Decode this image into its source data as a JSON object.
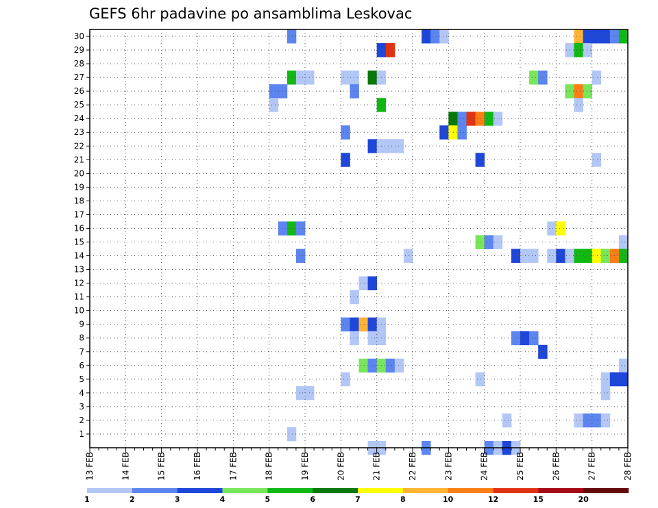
{
  "chart_data": {
    "type": "heatmap",
    "title": "GEFS 6hr padavine po ansamblima Leskovac",
    "xlabel": "",
    "ylabel": "",
    "x_ticks": [
      "13 FEB",
      "14 FEB",
      "15 FEB",
      "16 FEB",
      "17 FEB",
      "18 FEB",
      "19 FEB",
      "20 FEB",
      "21 FEB",
      "22 FEB",
      "23 FEB",
      "24 FEB",
      "25 FEB",
      "26 FEB",
      "27 FEB",
      "28 FEB"
    ],
    "y_ticks": [
      "1",
      "2",
      "3",
      "4",
      "5",
      "6",
      "7",
      "8",
      "9",
      "10",
      "11",
      "12",
      "13",
      "14",
      "15",
      "16",
      "17",
      "18",
      "19",
      "20",
      "21",
      "22",
      "23",
      "24",
      "25",
      "26",
      "27",
      "28",
      "29",
      "30"
    ],
    "steps_per_day": 4,
    "grid": true,
    "legend_position": "bottom",
    "legend": {
      "colors": [
        "#b3c7f7",
        "#5c85f0",
        "#1e46d8",
        "#78e65a",
        "#10b814",
        "#087808",
        "#ffff00",
        "#ffb432",
        "#ff7d14",
        "#e13214",
        "#a50a14",
        "#640a0a"
      ],
      "labels": [
        "1",
        "2",
        "3",
        "4",
        "5",
        "6",
        "7",
        "8",
        "10",
        "12",
        "15",
        "20"
      ]
    },
    "cells": [
      {
        "m": 30,
        "t": 22,
        "c": 2
      },
      {
        "m": 30,
        "t": 37,
        "c": 3
      },
      {
        "m": 30,
        "t": 38,
        "c": 2
      },
      {
        "m": 30,
        "t": 39,
        "c": 1
      },
      {
        "m": 30,
        "t": 54,
        "c": 8
      },
      {
        "m": 30,
        "t": 55,
        "c": 3
      },
      {
        "m": 30,
        "t": 56,
        "c": 3
      },
      {
        "m": 30,
        "t": 57,
        "c": 3
      },
      {
        "m": 30,
        "t": 58,
        "c": 2
      },
      {
        "m": 30,
        "t": 59,
        "c": 5
      },
      {
        "m": 29,
        "t": 32,
        "c": 3
      },
      {
        "m": 29,
        "t": 33,
        "c": 10
      },
      {
        "m": 29,
        "t": 53,
        "c": 1
      },
      {
        "m": 29,
        "t": 54,
        "c": 5
      },
      {
        "m": 29,
        "t": 55,
        "c": 1
      },
      {
        "m": 27,
        "t": 22,
        "c": 5
      },
      {
        "m": 27,
        "t": 23,
        "c": 1
      },
      {
        "m": 27,
        "t": 24,
        "c": 1
      },
      {
        "m": 27,
        "t": 28,
        "c": 1
      },
      {
        "m": 27,
        "t": 29,
        "c": 1
      },
      {
        "m": 27,
        "t": 31,
        "c": 6
      },
      {
        "m": 27,
        "t": 32,
        "c": 1
      },
      {
        "m": 27,
        "t": 49,
        "c": 4
      },
      {
        "m": 27,
        "t": 50,
        "c": 2
      },
      {
        "m": 27,
        "t": 56,
        "c": 1
      },
      {
        "m": 26,
        "t": 20,
        "c": 2
      },
      {
        "m": 26,
        "t": 21,
        "c": 2
      },
      {
        "m": 26,
        "t": 29,
        "c": 2
      },
      {
        "m": 26,
        "t": 53,
        "c": 4
      },
      {
        "m": 26,
        "t": 54,
        "c": 9
      },
      {
        "m": 26,
        "t": 55,
        "c": 4
      },
      {
        "m": 25,
        "t": 20,
        "c": 1
      },
      {
        "m": 25,
        "t": 32,
        "c": 5
      },
      {
        "m": 25,
        "t": 54,
        "c": 1
      },
      {
        "m": 24,
        "t": 40,
        "c": 6
      },
      {
        "m": 24,
        "t": 41,
        "c": 2
      },
      {
        "m": 24,
        "t": 42,
        "c": 10
      },
      {
        "m": 24,
        "t": 43,
        "c": 9
      },
      {
        "m": 24,
        "t": 44,
        "c": 5
      },
      {
        "m": 24,
        "t": 45,
        "c": 1
      },
      {
        "m": 23,
        "t": 28,
        "c": 2
      },
      {
        "m": 23,
        "t": 39,
        "c": 3
      },
      {
        "m": 23,
        "t": 40,
        "c": 7
      },
      {
        "m": 23,
        "t": 41,
        "c": 2
      },
      {
        "m": 22,
        "t": 31,
        "c": 3
      },
      {
        "m": 22,
        "t": 32,
        "c": 1
      },
      {
        "m": 22,
        "t": 33,
        "c": 1
      },
      {
        "m": 22,
        "t": 34,
        "c": 1
      },
      {
        "m": 21,
        "t": 28,
        "c": 3
      },
      {
        "m": 21,
        "t": 43,
        "c": 3
      },
      {
        "m": 21,
        "t": 56,
        "c": 1
      },
      {
        "m": 16,
        "t": 21,
        "c": 2
      },
      {
        "m": 16,
        "t": 22,
        "c": 5
      },
      {
        "m": 16,
        "t": 23,
        "c": 2
      },
      {
        "m": 16,
        "t": 51,
        "c": 1
      },
      {
        "m": 16,
        "t": 52,
        "c": 7
      },
      {
        "m": 15,
        "t": 43,
        "c": 4
      },
      {
        "m": 15,
        "t": 44,
        "c": 2
      },
      {
        "m": 15,
        "t": 45,
        "c": 1
      },
      {
        "m": 15,
        "t": 59,
        "c": 1
      },
      {
        "m": 14,
        "t": 23,
        "c": 2
      },
      {
        "m": 14,
        "t": 35,
        "c": 1
      },
      {
        "m": 14,
        "t": 47,
        "c": 3
      },
      {
        "m": 14,
        "t": 48,
        "c": 1
      },
      {
        "m": 14,
        "t": 49,
        "c": 1
      },
      {
        "m": 14,
        "t": 51,
        "c": 1
      },
      {
        "m": 14,
        "t": 52,
        "c": 3
      },
      {
        "m": 14,
        "t": 53,
        "c": 1
      },
      {
        "m": 14,
        "t": 54,
        "c": 5
      },
      {
        "m": 14,
        "t": 55,
        "c": 5
      },
      {
        "m": 14,
        "t": 56,
        "c": 7
      },
      {
        "m": 14,
        "t": 57,
        "c": 4
      },
      {
        "m": 14,
        "t": 58,
        "c": 9
      },
      {
        "m": 14,
        "t": 59,
        "c": 5
      },
      {
        "m": 12,
        "t": 30,
        "c": 1
      },
      {
        "m": 12,
        "t": 31,
        "c": 3
      },
      {
        "m": 11,
        "t": 29,
        "c": 1
      },
      {
        "m": 9,
        "t": 28,
        "c": 2
      },
      {
        "m": 9,
        "t": 29,
        "c": 3
      },
      {
        "m": 9,
        "t": 30,
        "c": 8
      },
      {
        "m": 9,
        "t": 31,
        "c": 3
      },
      {
        "m": 9,
        "t": 32,
        "c": 1
      },
      {
        "m": 8,
        "t": 29,
        "c": 1
      },
      {
        "m": 8,
        "t": 31,
        "c": 1
      },
      {
        "m": 8,
        "t": 32,
        "c": 1
      },
      {
        "m": 8,
        "t": 47,
        "c": 2
      },
      {
        "m": 8,
        "t": 48,
        "c": 3
      },
      {
        "m": 8,
        "t": 49,
        "c": 2
      },
      {
        "m": 7,
        "t": 50,
        "c": 3
      },
      {
        "m": 6,
        "t": 30,
        "c": 4
      },
      {
        "m": 6,
        "t": 31,
        "c": 2
      },
      {
        "m": 6,
        "t": 32,
        "c": 4
      },
      {
        "m": 6,
        "t": 33,
        "c": 2
      },
      {
        "m": 6,
        "t": 34,
        "c": 1
      },
      {
        "m": 6,
        "t": 59,
        "c": 1
      },
      {
        "m": 5,
        "t": 28,
        "c": 1
      },
      {
        "m": 5,
        "t": 43,
        "c": 1
      },
      {
        "m": 5,
        "t": 57,
        "c": 1
      },
      {
        "m": 5,
        "t": 58,
        "c": 3
      },
      {
        "m": 5,
        "t": 59,
        "c": 3
      },
      {
        "m": 4,
        "t": 23,
        "c": 1
      },
      {
        "m": 4,
        "t": 24,
        "c": 1
      },
      {
        "m": 4,
        "t": 57,
        "c": 1
      },
      {
        "m": 2,
        "t": 46,
        "c": 1
      },
      {
        "m": 2,
        "t": 54,
        "c": 1
      },
      {
        "m": 2,
        "t": 55,
        "c": 2
      },
      {
        "m": 2,
        "t": 56,
        "c": 2
      },
      {
        "m": 2,
        "t": 57,
        "c": 1
      },
      {
        "m": 1,
        "t": 22,
        "c": 1
      },
      {
        "m": 0,
        "t": 31,
        "c": 1
      },
      {
        "m": 0,
        "t": 32,
        "c": 1
      },
      {
        "m": 0,
        "t": 37,
        "c": 2
      },
      {
        "m": 0,
        "t": 44,
        "c": 2
      },
      {
        "m": 0,
        "t": 45,
        "c": 1
      },
      {
        "m": 0,
        "t": 46,
        "c": 3
      },
      {
        "m": 0,
        "t": 47,
        "c": 1
      }
    ]
  }
}
